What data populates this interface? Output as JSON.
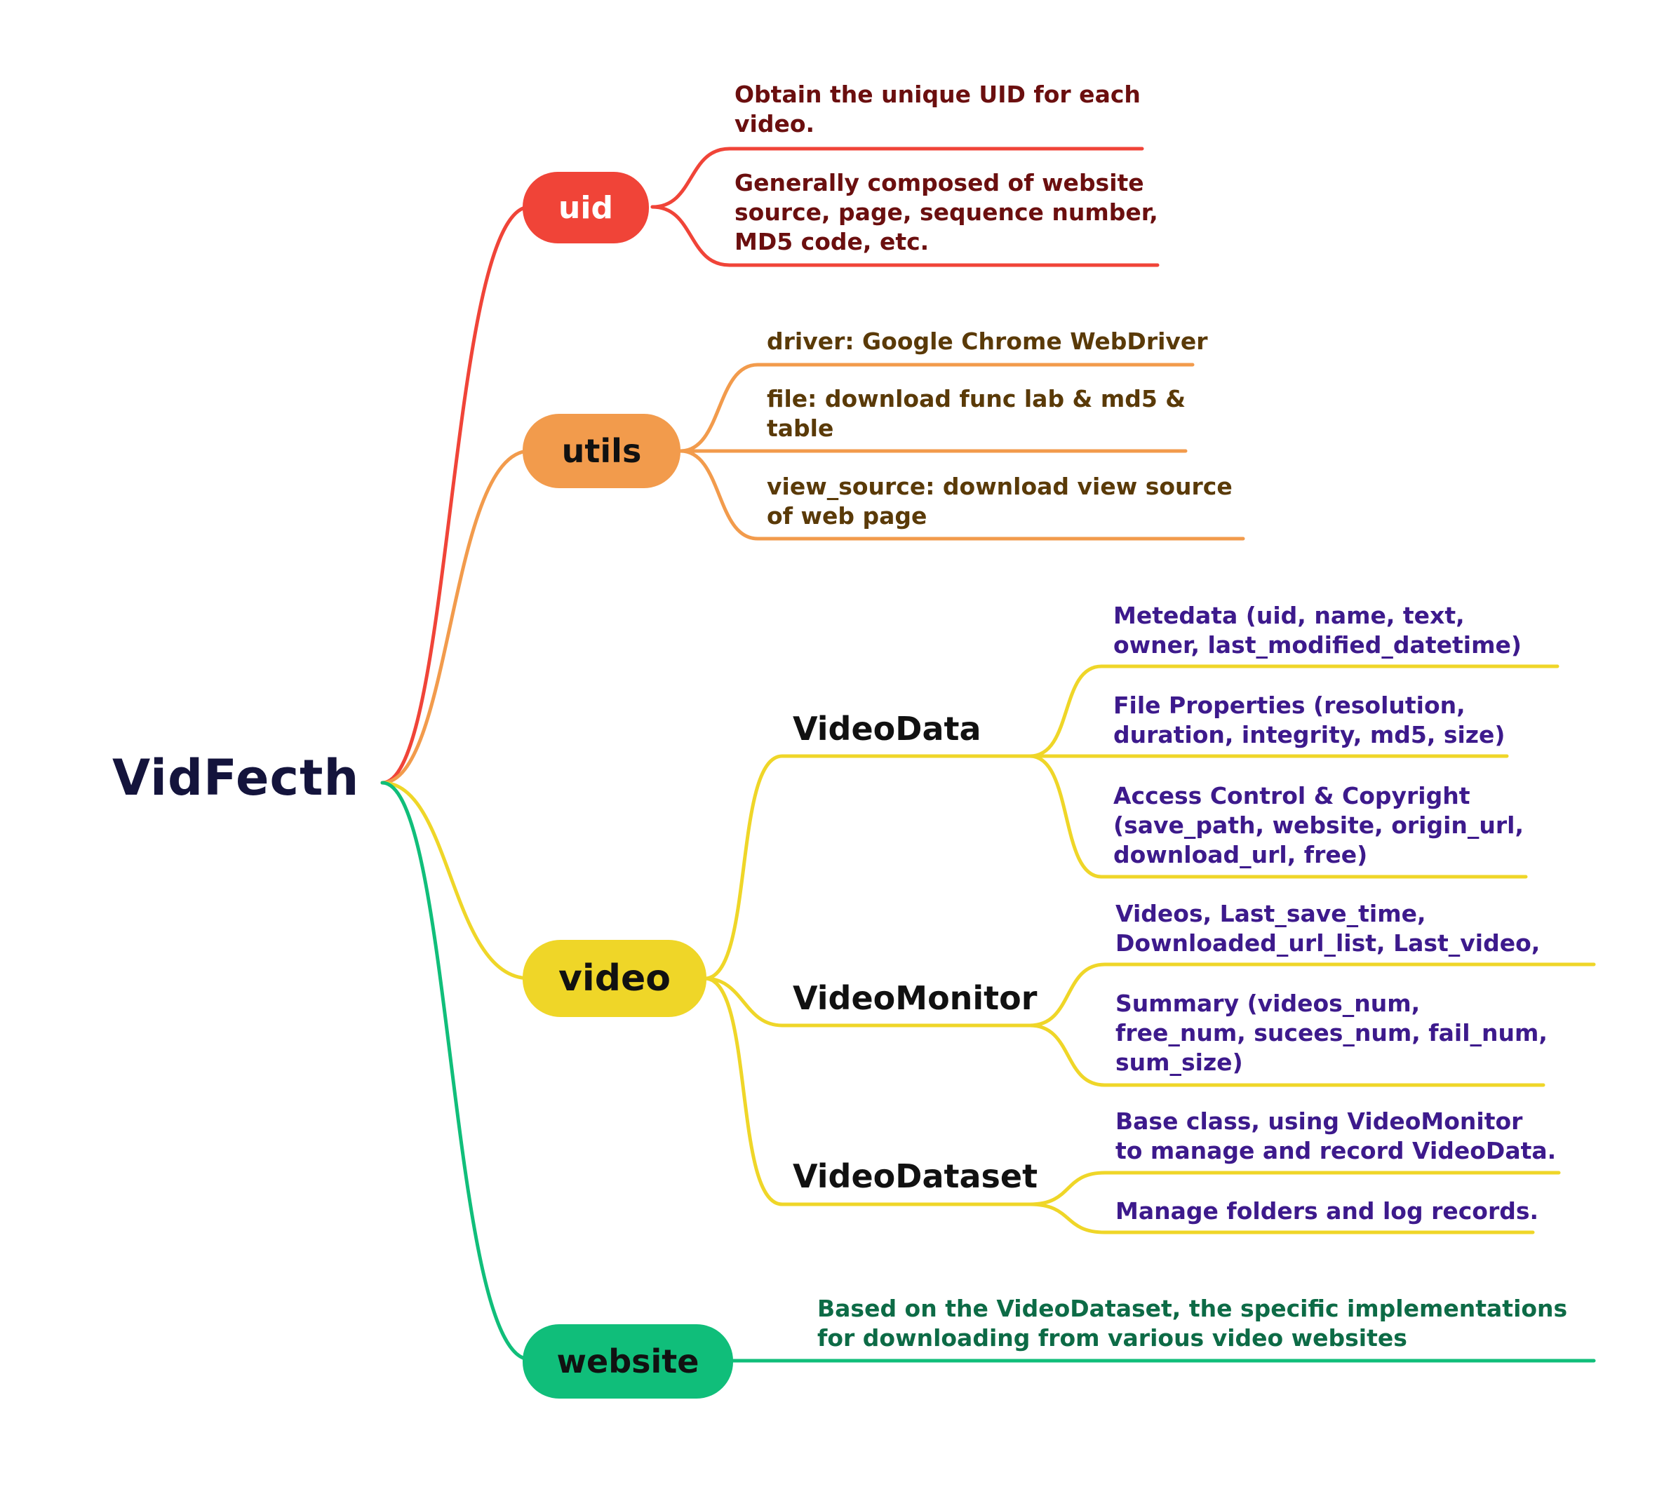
{
  "root": {
    "label": "VidFecth"
  },
  "colors": {
    "uid": "#f04438",
    "utils": "#f29b4c",
    "video": "#efd628",
    "website": "#10be7a"
  },
  "branches": {
    "uid": {
      "label": "uid",
      "leaves": [
        "Obtain the unique UID for each\nvideo.",
        "Generally composed of website\nsource, page, sequence number,\nMD5 code, etc."
      ]
    },
    "utils": {
      "label": "utils",
      "leaves": [
        "driver: Google Chrome WebDriver",
        "file: download func lab & md5 &\ntable",
        "view_source: download view source\nof web page"
      ]
    },
    "video": {
      "label": "video",
      "children": [
        {
          "label": "VideoData",
          "leaves": [
            "Metedata (uid, name, text,\nowner, last_modified_datetime)",
            "File Properties (resolution,\nduration, integrity, md5, size)",
            "Access Control & Copyright\n(save_path, website, origin_url,\ndownload_url, free)"
          ]
        },
        {
          "label": "VideoMonitor",
          "leaves": [
            "Videos, Last_save_time,\nDownloaded_url_list, Last_video,",
            "Summary (videos_num,\nfree_num, sucees_num, fail_num,\nsum_size)"
          ]
        },
        {
          "label": "VideoDataset",
          "leaves": [
            "Base class, using VideoMonitor\nto manage and record VideoData.",
            "Manage  folders and log records."
          ]
        }
      ]
    },
    "website": {
      "label": "website",
      "leaves": [
        "Based on the VideoDataset, the specific implementations\nfor downloading from various video websites"
      ]
    }
  }
}
